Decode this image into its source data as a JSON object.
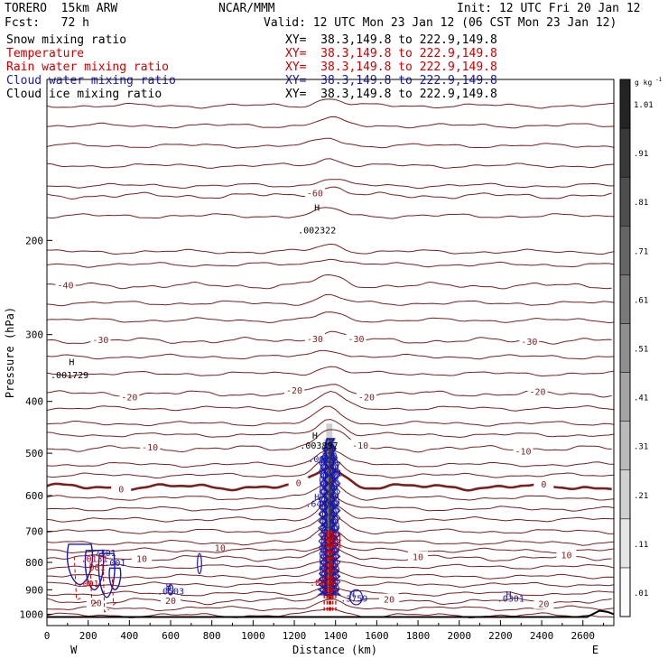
{
  "header": {
    "model": "TORERO  15km ARW",
    "center": "NCAR/MMM",
    "init": "Init: 12 UTC Fri 20 Jan 12",
    "fcst": "Fcst:   72 h",
    "valid": "Valid: 12 UTC Mon 23 Jan 12 (06 CST Mon 23 Jan 12)"
  },
  "legend": [
    {
      "name": "Snow mixing ratio",
      "xy": "XY=  38.3,149.8 to 222.9,149.8",
      "color": "#000000",
      "xy_color": "#000000"
    },
    {
      "name": "Temperature",
      "xy": "XY=  38.3,149.8 to 222.9,149.8",
      "color": "#cc0000",
      "xy_color": "#cc0000"
    },
    {
      "name": "Rain water mixing ratio",
      "xy": "XY=  38.3,149.8 to 222.9,149.8",
      "color": "#cc0000",
      "xy_color": "#cc0000"
    },
    {
      "name": "Cloud water mixing ratio",
      "xy": "XY=  38.3,149.8 to 222.9,149.8",
      "color": "#1a1aaa",
      "xy_color": "#1a1aaa"
    },
    {
      "name": "Cloud ice mixing ratio",
      "xy": "XY=  38.3,149.8 to 222.9,149.8",
      "color": "#000000",
      "xy_color": "#000000"
    }
  ],
  "chart_data": {
    "type": "line",
    "xlabel": "Distance (km)",
    "ylabel": "Pressure (hPa)",
    "xlim": [
      0,
      2750
    ],
    "ylim": [
      1050,
      100
    ],
    "x_ticks": [
      0,
      200,
      400,
      600,
      800,
      1000,
      1200,
      1400,
      1600,
      1800,
      2000,
      2200,
      2400,
      2600
    ],
    "y_ticks": [
      200,
      300,
      400,
      500,
      600,
      700,
      800,
      900,
      1000
    ],
    "x_end_labels": {
      "left": "W",
      "right": "E"
    },
    "colorbar": {
      "unit": "g kg",
      "unit_exp": "-1",
      "ticks": [
        ".01",
        ".11",
        ".21",
        ".31",
        ".41",
        ".51",
        ".61",
        ".71",
        ".81",
        ".91",
        "1.01"
      ]
    },
    "temperature_isotherms": [
      {
        "label": "0",
        "pressure_hPa": 578,
        "bold": true,
        "label_x_km": [
          360,
          1220,
          2410
        ]
      },
      {
        "label": "-10",
        "pressure_hPa": 490,
        "label_x_km": [
          500,
          1520,
          2310
        ]
      },
      {
        "label": "-20",
        "pressure_hPa": 387,
        "label_x_km": [
          400,
          1200,
          1550,
          2380
        ]
      },
      {
        "label": "-30",
        "pressure_hPa": 308,
        "label_x_km": [
          260,
          1300,
          1500,
          2340
        ]
      },
      {
        "label": "-40",
        "pressure_hPa": 243,
        "label_x_km": [
          90
        ]
      },
      {
        "label": "-60",
        "pressure_hPa": 165,
        "label_x_km": [
          1300
        ]
      },
      {
        "label": "10",
        "pressure_hPa": 785,
        "label_x_km": [
          460,
          1800,
          2520
        ]
      },
      {
        "label": "20",
        "pressure_hPa": 945,
        "label_x_km": [
          240,
          600,
          1660,
          2410
        ]
      }
    ],
    "text_annotations": [
      {
        "text": "H",
        "x_km": 1310,
        "p_hPa": 176,
        "color": "#000000"
      },
      {
        "text": ".002322",
        "x_km": 1310,
        "p_hPa": 194,
        "color": "#000000"
      },
      {
        "text": "H",
        "x_km": 120,
        "p_hPa": 342,
        "color": "#000000"
      },
      {
        "text": ".001729",
        "x_km": 110,
        "p_hPa": 362,
        "color": "#000000"
      },
      {
        "text": "H",
        "x_km": 1300,
        "p_hPa": 470,
        "color": "#000000"
      },
      {
        "text": ".003897",
        "x_km": 1320,
        "p_hPa": 490,
        "color": "#000000"
      },
      {
        "text": "H",
        "x_km": 1310,
        "p_hPa": 612,
        "color": "#1a1aaa"
      },
      {
        "text": ".6496",
        "x_km": 1320,
        "p_hPa": 630,
        "color": "#1a1aaa"
      },
      {
        "text": ".001",
        "x_km": 1320,
        "p_hPa": 520,
        "color": "#1a1aaa"
      },
      {
        "text": ".001",
        "x_km": 1380,
        "p_hPa": 552,
        "color": "#1a1aaa"
      },
      {
        "text": ".8803",
        "x_km": 1340,
        "p_hPa": 885,
        "color": "#cc0000"
      },
      {
        "text": ".001",
        "x_km": 1380,
        "p_hPa": 728,
        "color": "#cc0000"
      },
      {
        "text": ".001",
        "x_km": 1380,
        "p_hPa": 750,
        "color": "#cc0000"
      },
      {
        "text": "H",
        "x_km": 1480,
        "p_hPa": 930,
        "color": "#1a1aaa"
      },
      {
        "text": ".3759",
        "x_km": 1490,
        "p_hPa": 948,
        "color": "#1a1aaa"
      },
      {
        "text": "H",
        "x_km": 590,
        "p_hPa": 900,
        "color": "#1a1aaa"
      },
      {
        "text": ".0503",
        "x_km": 600,
        "p_hPa": 918,
        "color": "#1a1aaa"
      },
      {
        "text": "H",
        "x_km": 2240,
        "p_hPa": 930,
        "color": "#1a1aaa"
      },
      {
        "text": ".0301",
        "x_km": 2250,
        "p_hPa": 948,
        "color": "#1a1aaa"
      },
      {
        "text": ".7301",
        "x_km": 270,
        "p_hPa": 778,
        "color": "#1a1aaa"
      },
      {
        "text": ".0131",
        "x_km": 230,
        "p_hPa": 799,
        "color": "#cc0000"
      },
      {
        "text": ".001",
        "x_km": 330,
        "p_hPa": 812,
        "color": "#1a1aaa"
      },
      {
        "text": ".001",
        "x_km": 230,
        "p_hPa": 828,
        "color": "#cc0000"
      },
      {
        "text": ".001",
        "x_km": 200,
        "p_hPa": 888,
        "color": "#cc0000"
      },
      {
        "text": "10",
        "x_km": 840,
        "p_hPa": 762,
        "color": "#7a1f1f"
      }
    ]
  }
}
